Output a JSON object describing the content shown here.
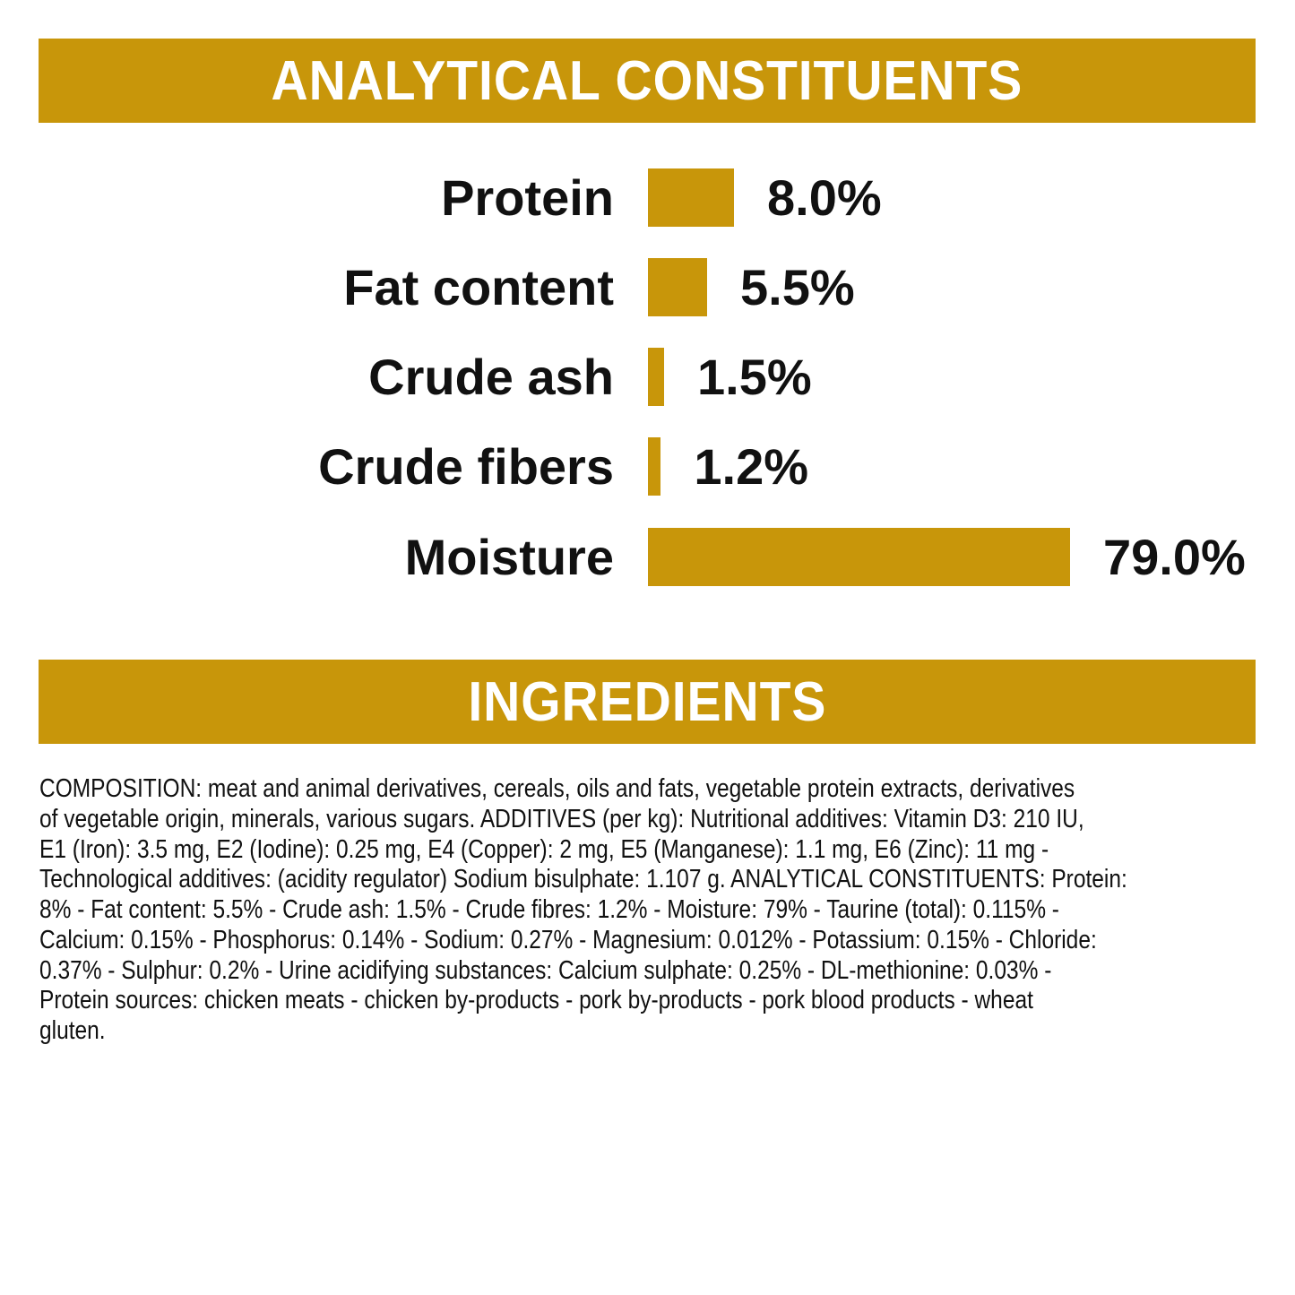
{
  "header1": "ANALYTICAL CONSTITUENTS",
  "header2": "INGREDIENTS",
  "chart_data": {
    "type": "bar",
    "orientation": "horizontal",
    "title": "ANALYTICAL CONSTITUENTS",
    "categories": [
      "Protein",
      "Fat content",
      "Crude ash",
      "Crude fibers",
      "Moisture"
    ],
    "values": [
      8.0,
      5.5,
      1.5,
      1.2,
      79.0
    ],
    "value_labels": [
      "8.0%",
      "5.5%",
      "1.5%",
      "1.2%",
      "79.0%"
    ],
    "unit": "%",
    "color": "#c8960a"
  },
  "ingredients_lines": [
    "COMPOSITION: meat and animal derivatives, cereals, oils and fats, vegetable protein extracts, derivatives",
    "of vegetable origin, minerals, various sugars. ADDITIVES (per kg): Nutritional additives: Vitamin D3: 210 IU,",
    "E1 (Iron): 3.5 mg, E2 (Iodine): 0.25 mg, E4 (Copper): 2 mg, E5 (Manganese): 1.1 mg, E6 (Zinc): 11 mg -",
    "Technological additives: (acidity regulator) Sodium bisulphate: 1.107 g. ANALYTICAL CONSTITUENTS: Protein:",
    "8% - Fat content: 5.5% - Crude ash: 1.5% - Crude fibres: 1.2% - Moisture: 79% - Taurine (total): 0.115% -",
    "Calcium: 0.15% - Phosphorus: 0.14% - Sodium: 0.27% - Magnesium: 0.012% - Potassium: 0.15% - Chloride:",
    "0.37% - Sulphur: 0.2% - Urine acidifying substances: Calcium sulphate: 0.25% - DL-methionine: 0.03% -",
    "Protein sources: chicken meats - chicken by-products - pork by-products - pork blood products - wheat",
    "gluten."
  ]
}
